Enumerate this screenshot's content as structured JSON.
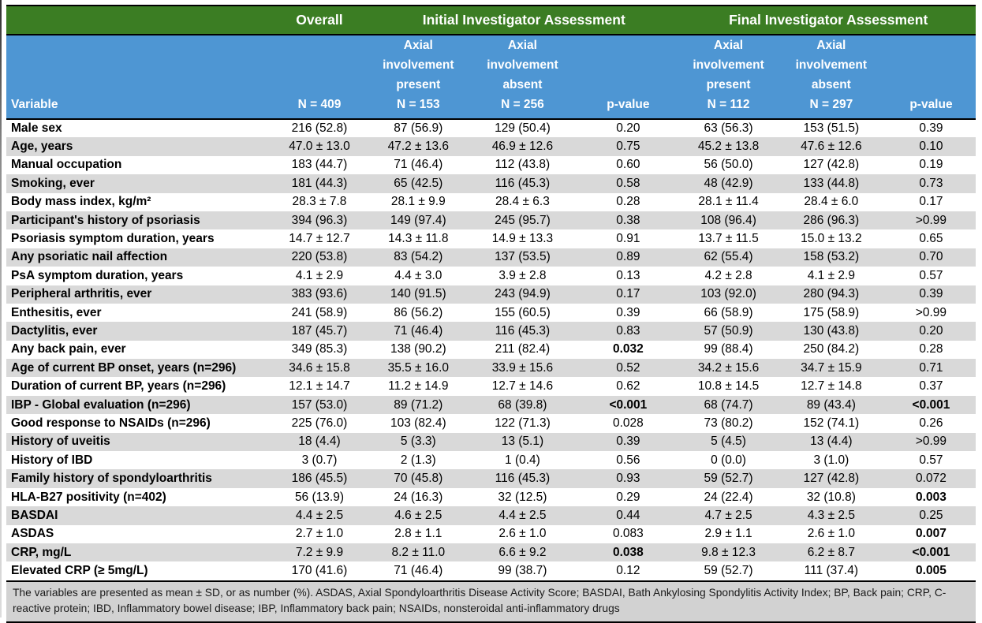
{
  "theme": {
    "green": "#3b7d23",
    "blue": "#4e96d3",
    "stripe": "#d9d9d9",
    "footer-bg": "#d2d2d2"
  },
  "table": {
    "group_headers": {
      "overall": "Overall",
      "initial": "Initial Investigator Assessment",
      "final": "Final Investigator Assessment"
    },
    "column_headers": {
      "variable": "Variable",
      "overall": {
        "n": "N = 409"
      },
      "initial_present": {
        "label": "Axial involvement present",
        "n": "N = 153"
      },
      "initial_absent": {
        "label": "Axial involvement absent",
        "n": "N = 256"
      },
      "initial_p": {
        "n": "p-value"
      },
      "final_present": {
        "label": "Axial involvement present",
        "n": "N = 112"
      },
      "final_absent": {
        "label": "Axial involvement absent",
        "n": "N = 297"
      },
      "final_p": {
        "n": "p-value"
      }
    },
    "rows": [
      {
        "cells": [
          "Male sex",
          "216 (52.8)",
          "87 (56.9)",
          "129 (50.4)",
          "0.20",
          "63 (56.3)",
          "153 (51.5)",
          "0.39"
        ],
        "bold_p": []
      },
      {
        "cells": [
          "Age, years",
          "47.0 ± 13.0",
          "47.2 ± 13.6",
          "46.9 ± 12.6",
          "0.75",
          "45.2 ± 13.8",
          "47.6 ± 12.6",
          "0.10"
        ],
        "bold_p": []
      },
      {
        "cells": [
          "Manual occupation",
          "183 (44.7)",
          "71 (46.4)",
          "112 (43.8)",
          "0.60",
          "56 (50.0)",
          "127 (42.8)",
          "0.19"
        ],
        "bold_p": []
      },
      {
        "cells": [
          "Smoking, ever",
          "181 (44.3)",
          "65 (42.5)",
          "116 (45.3)",
          "0.58",
          "48 (42.9)",
          "133 (44.8)",
          "0.73"
        ],
        "bold_p": []
      },
      {
        "cells": [
          "Body mass index, kg/m²",
          "28.3 ± 7.8",
          "28.1 ± 9.9",
          "28.4 ± 6.3",
          "0.28",
          "28.1 ± 11.4",
          "28.4 ± 6.0",
          "0.17"
        ],
        "bold_p": []
      },
      {
        "cells": [
          "Participant's history of psoriasis",
          "394 (96.3)",
          "149 (97.4)",
          "245 (95.7)",
          "0.38",
          "108 (96.4)",
          "286 (96.3)",
          ">0.99"
        ],
        "bold_p": []
      },
      {
        "cells": [
          "Psoriasis symptom duration, years",
          "14.7 ± 12.7",
          "14.3 ± 11.8",
          "14.9 ± 13.3",
          "0.91",
          "13.7 ± 11.5",
          "15.0 ± 13.2",
          "0.65"
        ],
        "bold_p": []
      },
      {
        "cells": [
          "Any psoriatic nail affection",
          "220 (53.8)",
          "83 (54.2)",
          "137 (53.5)",
          "0.89",
          "62 (55.4)",
          "158 (53.2)",
          "0.70"
        ],
        "bold_p": []
      },
      {
        "cells": [
          "PsA symptom duration, years",
          "4.1 ± 2.9",
          "4.4 ± 3.0",
          "3.9 ± 2.8",
          "0.13",
          "4.2 ± 2.8",
          "4.1 ± 2.9",
          "0.57"
        ],
        "bold_p": []
      },
      {
        "cells": [
          "Peripheral arthritis, ever",
          "383 (93.6)",
          "140 (91.5)",
          "243 (94.9)",
          "0.17",
          "103 (92.0)",
          "280 (94.3)",
          "0.39"
        ],
        "bold_p": []
      },
      {
        "cells": [
          "Enthesitis, ever",
          "241 (58.9)",
          "86 (56.2)",
          "155 (60.5)",
          "0.39",
          "66 (58.9)",
          "175 (58.9)",
          ">0.99"
        ],
        "bold_p": []
      },
      {
        "cells": [
          "Dactylitis, ever",
          "187 (45.7)",
          "71 (46.4)",
          "116 (45.3)",
          "0.83",
          "57 (50.9)",
          "130 (43.8)",
          "0.20"
        ],
        "bold_p": []
      },
      {
        "cells": [
          "Any back pain, ever",
          "349 (85.3)",
          "138 (90.2)",
          "211 (82.4)",
          "0.032",
          "99 (88.4)",
          "250 (84.2)",
          "0.28"
        ],
        "bold_p": [
          4
        ]
      },
      {
        "cells": [
          "Age of current BP onset, years (n=296)",
          "34.6 ± 15.8",
          "35.5 ± 16.0",
          "33.9 ± 15.6",
          "0.52",
          "34.2 ± 15.6",
          "34.7 ± 15.9",
          "0.71"
        ],
        "bold_p": []
      },
      {
        "cells": [
          "Duration of current BP, years (n=296)",
          "12.1 ± 14.7",
          "11.2 ± 14.9",
          "12.7 ± 14.6",
          "0.62",
          "10.8 ± 14.5",
          "12.7 ± 14.8",
          "0.37"
        ],
        "bold_p": []
      },
      {
        "cells": [
          "IBP - Global evaluation (n=296)",
          "157 (53.0)",
          "89 (71.2)",
          "68 (39.8)",
          "<0.001",
          "68 (74.7)",
          "89 (43.4)",
          "<0.001"
        ],
        "bold_p": [
          4,
          7
        ]
      },
      {
        "cells": [
          "Good response to NSAIDs (n=296)",
          "225 (76.0)",
          "103 (82.4)",
          "122 (71.3)",
          "0.028",
          "73 (80.2)",
          "152 (74.1)",
          "0.26"
        ],
        "bold_p": []
      },
      {
        "cells": [
          "History of uveitis",
          "18 (4.4)",
          "5 (3.3)",
          "13 (5.1)",
          "0.39",
          "5 (4.5)",
          "13 (4.4)",
          ">0.99"
        ],
        "bold_p": []
      },
      {
        "cells": [
          "History of IBD",
          "3 (0.7)",
          "2 (1.3)",
          "1 (0.4)",
          "0.56",
          "0 (0.0)",
          "3 (1.0)",
          "0.57"
        ],
        "bold_p": []
      },
      {
        "cells": [
          "Family history of spondyloarthritis",
          "186 (45.5)",
          "70 (45.8)",
          "116 (45.3)",
          "0.93",
          "59 (52.7)",
          "127 (42.8)",
          "0.072"
        ],
        "bold_p": []
      },
      {
        "cells": [
          "HLA-B27 positivity (n=402)",
          "56 (13.9)",
          "24 (16.3)",
          "32 (12.5)",
          "0.29",
          "24 (22.4)",
          "32 (10.8)",
          "0.003"
        ],
        "bold_p": [
          7
        ]
      },
      {
        "cells": [
          "BASDAI",
          "4.4 ± 2.5",
          "4.6 ± 2.5",
          "4.4 ± 2.5",
          "0.44",
          "4.7 ± 2.5",
          "4.3 ± 2.5",
          "0.25"
        ],
        "bold_p": []
      },
      {
        "cells": [
          "ASDAS",
          "2.7 ± 1.0",
          "2.8 ± 1.1",
          "2.6 ± 1.0",
          "0.083",
          "2.9 ± 1.1",
          "2.6 ± 1.0",
          "0.007"
        ],
        "bold_p": [
          7
        ]
      },
      {
        "cells": [
          "CRP, mg/L",
          "7.2 ± 9.9",
          "8.2 ± 11.0",
          "6.6 ± 9.2",
          "0.038",
          "9.8 ± 12.3",
          "6.2 ± 8.7",
          "<0.001"
        ],
        "bold_p": [
          4,
          7
        ]
      },
      {
        "cells": [
          "Elevated CRP (≥ 5mg/L)",
          "170 (41.6)",
          "71 (46.4)",
          "99 (38.7)",
          "0.12",
          "59 (52.7)",
          "111 (37.4)",
          "0.005"
        ],
        "bold_p": [
          7
        ]
      }
    ],
    "footnote": "The variables are presented as mean ± SD, or as number (%). ASDAS, Axial Spondyloarthritis Disease Activity Score; BASDAI, Bath Ankylosing Spondylitis Activity Index; BP, Back pain; CRP, C-reactive protein; IBD, Inflammatory bowel disease; IBP, Inflammatory back pain; NSAIDs, nonsteroidal anti-inflammatory drugs"
  }
}
